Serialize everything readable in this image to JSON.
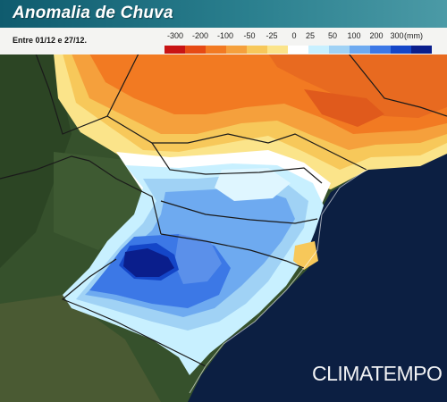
{
  "header": {
    "title": "Anomalia de Chuva"
  },
  "subheader": {
    "period": "Entre 01/12 e 27/12."
  },
  "legend": {
    "labels": [
      "-300",
      "-200",
      "-100",
      "-50",
      "-25",
      "0",
      "25",
      "50",
      "100",
      "200",
      "300"
    ],
    "unit": "(mm)",
    "colors": [
      "#c81414",
      "#e64a14",
      "#f27a22",
      "#f5a03c",
      "#f7c85a",
      "#fbe48a",
      "#ffffff",
      "#c8f0ff",
      "#a0d2f5",
      "#6eaaf0",
      "#3c78e6",
      "#1446c8",
      "#0a1e8c"
    ]
  },
  "brand": {
    "name": "CLIMATEMPO"
  }
}
